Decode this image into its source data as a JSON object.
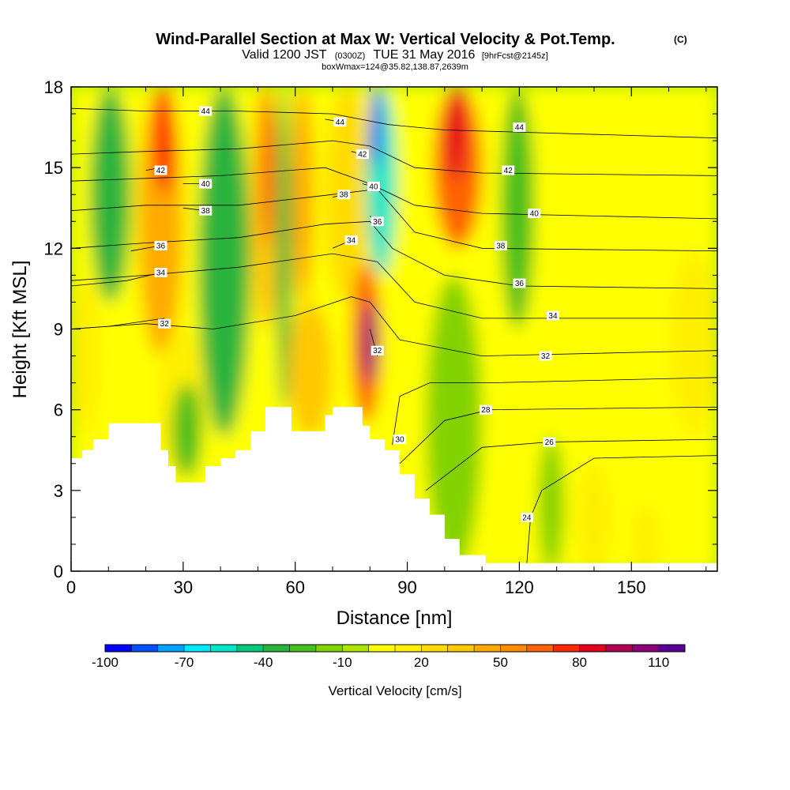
{
  "chart_data": {
    "type": "heatmap",
    "title": "Wind-Parallel Section at Max W: Vertical Velocity & Pot.Temp.",
    "title_mark": "(C)",
    "subtitle_main": "Valid 1200 JST",
    "subtitle_utc": "(0300Z)",
    "subtitle_date": "TUE 31 May 2016",
    "subtitle_fcst": "[9hrFcst@2145z]",
    "subtitle_box": "boxWmax=124@35.82,138.87,2639m",
    "xlabel": "Distance [nm]",
    "ylabel": "Height [Kft MSL]",
    "xlim": [
      0,
      173
    ],
    "ylim": [
      0,
      18
    ],
    "xticks": [
      0,
      30,
      60,
      90,
      120,
      150
    ],
    "yticks": [
      0,
      3,
      6,
      9,
      12,
      15,
      18
    ],
    "xtick_labels": [
      "0",
      "30",
      "60",
      "90",
      "120",
      "150"
    ],
    "ytick_labels": [
      "0",
      "3",
      "6",
      "9",
      "12",
      "15",
      "18"
    ],
    "colorbar": {
      "title": "Vertical Velocity [cm/s]",
      "labels": [
        "-100",
        "-70",
        "-40",
        "-10",
        "20",
        "50",
        "80",
        "110"
      ],
      "label_values": [
        -100,
        -70,
        -40,
        -10,
        20,
        50,
        80,
        110
      ],
      "levels": [
        -100,
        -90,
        -80,
        -70,
        -60,
        -50,
        -40,
        -30,
        -20,
        -10,
        0,
        10,
        20,
        30,
        40,
        50,
        60,
        70,
        80,
        90,
        100,
        110
      ],
      "colors": [
        "#0000ff",
        "#0050ff",
        "#00a0ff",
        "#00e8ff",
        "#00e6c8",
        "#00c878",
        "#2ab43c",
        "#46be1e",
        "#82d200",
        "#aae600",
        "#ffff00",
        "#fff000",
        "#ffdc00",
        "#ffc800",
        "#ffaa00",
        "#ff8c00",
        "#ff6400",
        "#ff2800",
        "#e6001e",
        "#b40050",
        "#8c0078",
        "#5a0096"
      ]
    },
    "velocity_regions": [
      {
        "x": 0,
        "x2": 173,
        "ylow": 0,
        "yhigh": 18,
        "value": 5
      },
      {
        "x": 0,
        "x2": 8,
        "ylow": 5,
        "yhigh": 11,
        "value": 15
      },
      {
        "x": 5,
        "x2": 16,
        "ylow": 10,
        "yhigh": 18,
        "value": -35
      },
      {
        "x": 18,
        "x2": 30,
        "ylow": 8,
        "yhigh": 18,
        "value": 40
      },
      {
        "x": 22,
        "x2": 28,
        "ylow": 14,
        "yhigh": 18,
        "value": 75
      },
      {
        "x": 23,
        "x2": 36,
        "ylow": 3.5,
        "yhigh": 9,
        "value": 15
      },
      {
        "x": 27,
        "x2": 35,
        "ylow": 3.5,
        "yhigh": 7,
        "value": -25
      },
      {
        "x": 34,
        "x2": 48,
        "ylow": 5,
        "yhigh": 18,
        "value": -35
      },
      {
        "x": 48,
        "x2": 56,
        "ylow": 9,
        "yhigh": 18,
        "value": 35
      },
      {
        "x": 51,
        "x2": 54,
        "ylow": 12,
        "yhigh": 18,
        "value": 70
      },
      {
        "x": 55,
        "x2": 59,
        "ylow": 6,
        "yhigh": 18,
        "value": -35
      },
      {
        "x": 58,
        "x2": 70,
        "ylow": 5,
        "yhigh": 10,
        "value": 35
      },
      {
        "x": 59,
        "x2": 65,
        "ylow": 10,
        "yhigh": 18,
        "value": 45
      },
      {
        "x": 68,
        "x2": 80,
        "ylow": 10,
        "yhigh": 18,
        "value": 20
      },
      {
        "x": 75,
        "x2": 83,
        "ylow": 5.5,
        "yhigh": 11.5,
        "value": 60
      },
      {
        "x": 78,
        "x2": 82,
        "ylow": 7,
        "yhigh": 10,
        "value": 105
      },
      {
        "x": 79,
        "x2": 87,
        "ylow": 11,
        "yhigh": 18,
        "value": -55
      },
      {
        "x": 80,
        "x2": 83,
        "ylow": 15,
        "yhigh": 18,
        "value": -95
      },
      {
        "x": 97,
        "x2": 110,
        "ylow": 12,
        "yhigh": 18,
        "value": 60
      },
      {
        "x": 100,
        "x2": 106,
        "ylow": 14.5,
        "yhigh": 18,
        "value": 80
      },
      {
        "x": 95,
        "x2": 110,
        "ylow": 0,
        "yhigh": 11,
        "value": -20
      },
      {
        "x": 115,
        "x2": 124,
        "ylow": 9,
        "yhigh": 18,
        "value": -30
      },
      {
        "x": 125,
        "x2": 132,
        "ylow": 0,
        "yhigh": 5,
        "value": -20
      },
      {
        "x": 135,
        "x2": 145,
        "ylow": 0,
        "yhigh": 4,
        "value": 15
      },
      {
        "x": 150,
        "x2": 158,
        "ylow": 0,
        "yhigh": 2.5,
        "value": 15
      },
      {
        "x": 160,
        "x2": 173,
        "ylow": 5,
        "yhigh": 12,
        "value": 15
      }
    ],
    "terrain": [
      {
        "x": 0,
        "y": 4.2
      },
      {
        "x": 3,
        "y": 4.5
      },
      {
        "x": 6,
        "y": 4.9
      },
      {
        "x": 10,
        "y": 5.5
      },
      {
        "x": 20,
        "y": 5.5
      },
      {
        "x": 24,
        "y": 4.5
      },
      {
        "x": 26,
        "y": 3.9
      },
      {
        "x": 28,
        "y": 3.3
      },
      {
        "x": 33,
        "y": 3.3
      },
      {
        "x": 36,
        "y": 3.9
      },
      {
        "x": 40,
        "y": 4.2
      },
      {
        "x": 44,
        "y": 4.5
      },
      {
        "x": 48,
        "y": 5.2
      },
      {
        "x": 52,
        "y": 6.1
      },
      {
        "x": 56,
        "y": 6.1
      },
      {
        "x": 59,
        "y": 5.2
      },
      {
        "x": 65,
        "y": 5.2
      },
      {
        "x": 68,
        "y": 5.8
      },
      {
        "x": 70,
        "y": 6.1
      },
      {
        "x": 75,
        "y": 6.1
      },
      {
        "x": 78,
        "y": 5.4
      },
      {
        "x": 80,
        "y": 4.9
      },
      {
        "x": 84,
        "y": 4.5
      },
      {
        "x": 88,
        "y": 3.6
      },
      {
        "x": 92,
        "y": 2.7
      },
      {
        "x": 96,
        "y": 2.1
      },
      {
        "x": 100,
        "y": 1.2
      },
      {
        "x": 104,
        "y": 0.6
      },
      {
        "x": 111,
        "y": 0.3
      },
      {
        "x": 173,
        "y": 0.3
      }
    ],
    "theta_contours": [
      {
        "label": "24",
        "points": [
          [
            122,
            0.3
          ],
          [
            123,
            2
          ],
          [
            126,
            3
          ],
          [
            140,
            4.2
          ],
          [
            173,
            4.3
          ]
        ],
        "label_at": [
          122,
          2
        ]
      },
      {
        "label": "26",
        "points": [
          [
            95,
            3
          ],
          [
            110,
            4.6
          ],
          [
            128,
            4.8
          ],
          [
            173,
            4.9
          ]
        ],
        "label_at": [
          128,
          4.8
        ]
      },
      {
        "label": "28",
        "points": [
          [
            88,
            4
          ],
          [
            100,
            5.6
          ],
          [
            112,
            6
          ],
          [
            173,
            6.1
          ]
        ],
        "label_at": [
          111,
          6
        ]
      },
      {
        "label": "30",
        "points": [
          [
            86,
            4.7
          ],
          [
            88,
            6.5
          ],
          [
            96,
            7
          ],
          [
            112,
            7
          ],
          [
            173,
            7.2
          ]
        ],
        "label_at": [
          88,
          4.9
        ]
      },
      {
        "label": "32",
        "points": [
          [
            0,
            9
          ],
          [
            20,
            9.2
          ],
          [
            38,
            9
          ],
          [
            60,
            9.5
          ],
          [
            75,
            10.2
          ],
          [
            80,
            10
          ],
          [
            88,
            8.6
          ],
          [
            110,
            8
          ],
          [
            173,
            8.2
          ]
        ],
        "label_at": [
          127,
          8
        ]
      },
      {
        "label": "32",
        "points": [
          [
            0,
            9
          ],
          [
            10,
            9.1
          ],
          [
            25,
            9.4
          ]
        ],
        "label_at": [
          25,
          9.2
        ]
      },
      {
        "label": "32",
        "points": [
          [
            80,
            9
          ],
          [
            82,
            8
          ]
        ],
        "label_at": [
          82,
          8.2
        ]
      },
      {
        "label": "34",
        "points": [
          [
            0,
            10.8
          ],
          [
            20,
            11
          ],
          [
            45,
            11.3
          ],
          [
            70,
            11.8
          ],
          [
            82,
            11.5
          ],
          [
            92,
            10
          ],
          [
            110,
            9.4
          ],
          [
            173,
            9.4
          ]
        ],
        "label_at": [
          129,
          9.5
        ]
      },
      {
        "label": "34",
        "points": [
          [
            0,
            10.6
          ],
          [
            15,
            10.8
          ],
          [
            24,
            11.1
          ]
        ],
        "label_at": [
          24,
          11.1
        ]
      },
      {
        "label": "34",
        "points": [
          [
            70,
            12
          ],
          [
            75,
            12.3
          ]
        ],
        "label_at": [
          75,
          12.3
        ]
      },
      {
        "label": "36",
        "points": [
          [
            0,
            12
          ],
          [
            20,
            12.2
          ],
          [
            45,
            12.4
          ],
          [
            68,
            12.9
          ],
          [
            80,
            13
          ],
          [
            86,
            12
          ],
          [
            100,
            11
          ],
          [
            120,
            10.6
          ],
          [
            173,
            10.5
          ]
        ],
        "label_at": [
          120,
          10.7
        ]
      },
      {
        "label": "36",
        "points": [
          [
            16,
            11.9
          ],
          [
            24,
            12.1
          ]
        ],
        "label_at": [
          24,
          12.1
        ]
      },
      {
        "label": "36",
        "points": [
          [
            80,
            13.2
          ],
          [
            82,
            13
          ]
        ],
        "label_at": [
          82,
          13
        ]
      },
      {
        "label": "38",
        "points": [
          [
            0,
            13.4
          ],
          [
            20,
            13.6
          ],
          [
            45,
            13.6
          ],
          [
            70,
            14
          ],
          [
            82,
            14.2
          ],
          [
            92,
            12.6
          ],
          [
            110,
            12
          ],
          [
            173,
            11.9
          ]
        ],
        "label_at": [
          115,
          12.1
        ]
      },
      {
        "label": "38",
        "points": [
          [
            30,
            13.5
          ],
          [
            36,
            13.4
          ]
        ],
        "label_at": [
          36,
          13.4
        ]
      },
      {
        "label": "38",
        "points": [
          [
            70,
            13.9
          ],
          [
            73,
            14
          ]
        ],
        "label_at": [
          73,
          14
        ]
      },
      {
        "label": "40",
        "points": [
          [
            0,
            14.5
          ],
          [
            20,
            14.6
          ],
          [
            40,
            14.7
          ],
          [
            68,
            15
          ],
          [
            80,
            14.4
          ],
          [
            92,
            13.6
          ],
          [
            110,
            13.3
          ],
          [
            173,
            13.1
          ]
        ],
        "label_at": [
          124,
          13.3
        ]
      },
      {
        "label": "40",
        "points": [
          [
            30,
            14.4
          ],
          [
            36,
            14.4
          ]
        ],
        "label_at": [
          36,
          14.4
        ]
      },
      {
        "label": "40",
        "points": [
          [
            78,
            14.4
          ],
          [
            81,
            14.3
          ]
        ],
        "label_at": [
          81,
          14.3
        ]
      },
      {
        "label": "42",
        "points": [
          [
            0,
            15.5
          ],
          [
            20,
            15.6
          ],
          [
            45,
            15.7
          ],
          [
            70,
            16
          ],
          [
            80,
            15.8
          ],
          [
            92,
            15
          ],
          [
            110,
            14.8
          ],
          [
            173,
            14.7
          ]
        ],
        "label_at": [
          117,
          14.9
        ]
      },
      {
        "label": "42",
        "points": [
          [
            20,
            14.9
          ],
          [
            24,
            15
          ]
        ],
        "label_at": [
          24,
          14.9
        ]
      },
      {
        "label": "42",
        "points": [
          [
            75,
            15.6
          ],
          [
            78,
            15.5
          ]
        ],
        "label_at": [
          78,
          15.5
        ]
      },
      {
        "label": "44",
        "points": [
          [
            0,
            17.2
          ],
          [
            20,
            17.1
          ],
          [
            45,
            17.1
          ],
          [
            70,
            17
          ],
          [
            85,
            16.6
          ],
          [
            100,
            16.4
          ],
          [
            173,
            16.1
          ]
        ],
        "label_at": [
          120,
          16.5
        ]
      },
      {
        "label": "44",
        "points": [
          [
            30,
            17.1
          ],
          [
            36,
            17.1
          ]
        ],
        "label_at": [
          36,
          17.1
        ]
      },
      {
        "label": "44",
        "points": [
          [
            68,
            16.8
          ],
          [
            72,
            16.7
          ]
        ],
        "label_at": [
          72,
          16.7
        ]
      }
    ],
    "grid": false,
    "legend": "bottom-colorbar"
  }
}
